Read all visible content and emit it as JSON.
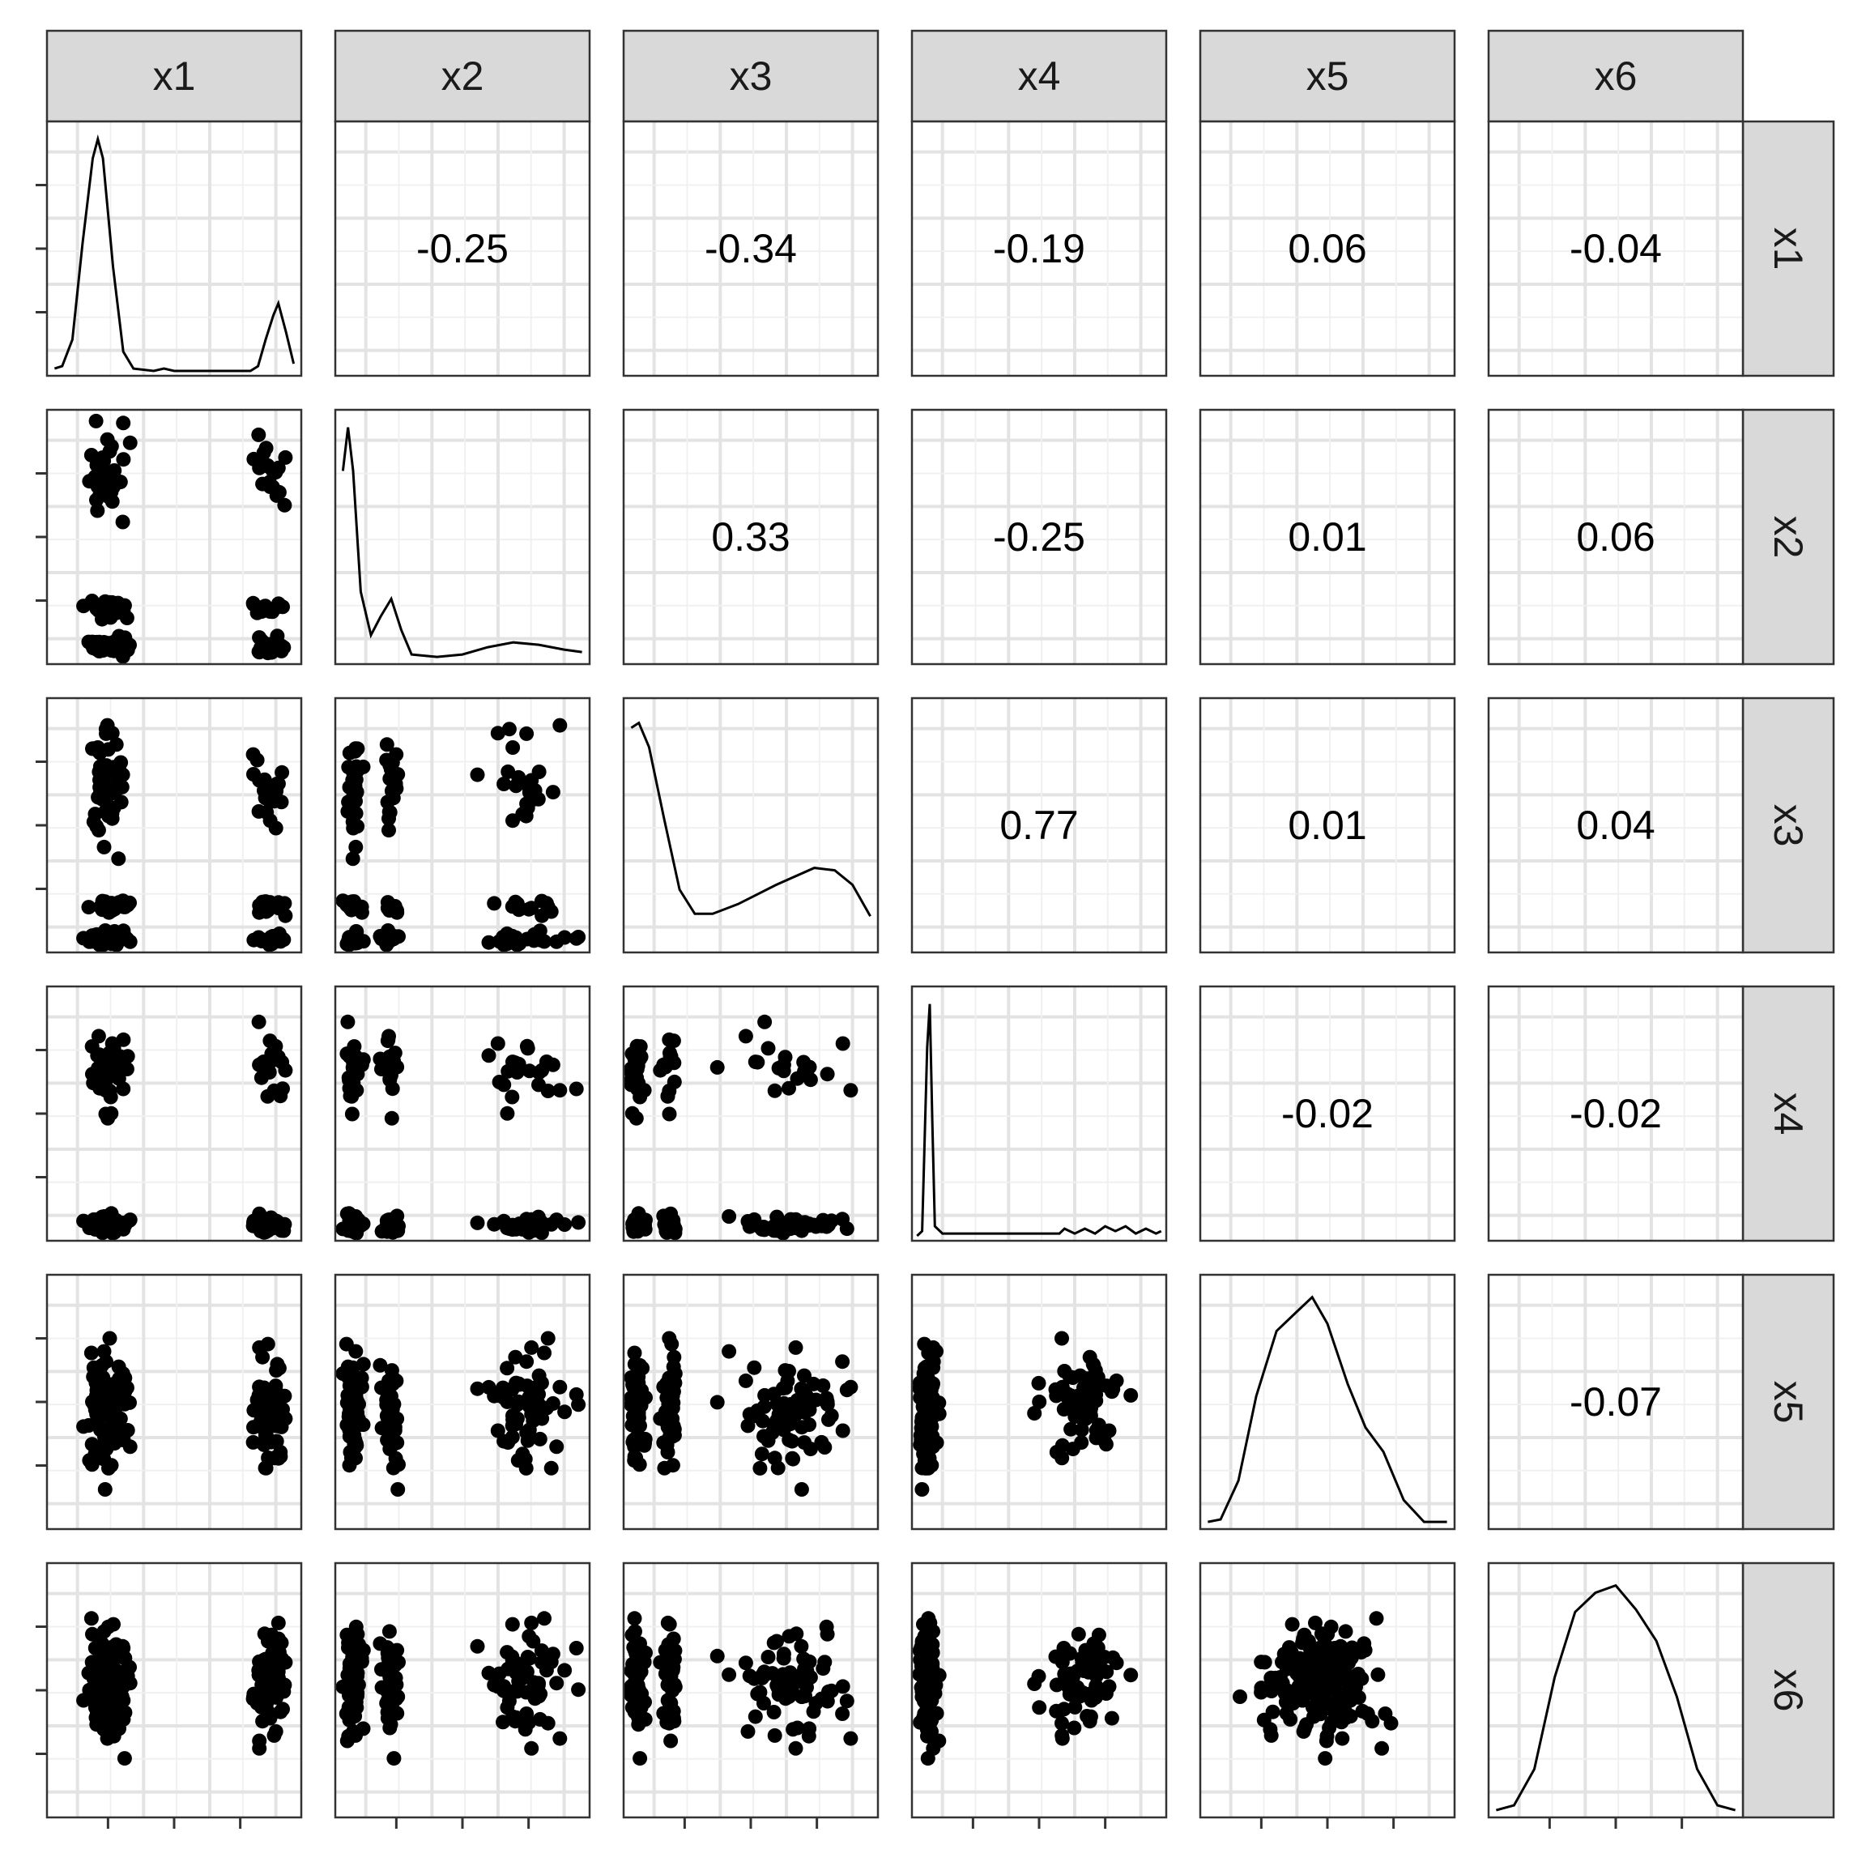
{
  "chart_data": {
    "type": "scatter",
    "variables": [
      "x1",
      "x2",
      "x3",
      "x4",
      "x5",
      "x6"
    ],
    "correlations": [
      {
        "row": "x1",
        "col": "x2",
        "value": "-0.25"
      },
      {
        "row": "x1",
        "col": "x3",
        "value": "-0.34"
      },
      {
        "row": "x1",
        "col": "x4",
        "value": "-0.19"
      },
      {
        "row": "x1",
        "col": "x5",
        "value": "0.06"
      },
      {
        "row": "x1",
        "col": "x6",
        "value": "-0.04"
      },
      {
        "row": "x2",
        "col": "x3",
        "value": "0.33"
      },
      {
        "row": "x2",
        "col": "x4",
        "value": "-0.25"
      },
      {
        "row": "x2",
        "col": "x5",
        "value": "0.01"
      },
      {
        "row": "x2",
        "col": "x6",
        "value": "0.06"
      },
      {
        "row": "x3",
        "col": "x4",
        "value": "0.77"
      },
      {
        "row": "x3",
        "col": "x5",
        "value": "0.01"
      },
      {
        "row": "x3",
        "col": "x6",
        "value": "0.04"
      },
      {
        "row": "x4",
        "col": "x5",
        "value": "-0.02"
      },
      {
        "row": "x4",
        "col": "x6",
        "value": "-0.02"
      },
      {
        "row": "x5",
        "col": "x6",
        "value": "-0.07"
      }
    ],
    "densities": {
      "x1": [
        [
          0.03,
          0.03
        ],
        [
          0.06,
          0.04
        ],
        [
          0.1,
          0.15
        ],
        [
          0.14,
          0.55
        ],
        [
          0.18,
          0.9
        ],
        [
          0.2,
          0.98
        ],
        [
          0.22,
          0.9
        ],
        [
          0.26,
          0.45
        ],
        [
          0.3,
          0.1
        ],
        [
          0.34,
          0.03
        ],
        [
          0.42,
          0.02
        ],
        [
          0.46,
          0.03
        ],
        [
          0.5,
          0.02
        ],
        [
          0.6,
          0.02
        ],
        [
          0.7,
          0.02
        ],
        [
          0.8,
          0.02
        ],
        [
          0.83,
          0.04
        ],
        [
          0.86,
          0.15
        ],
        [
          0.89,
          0.25
        ],
        [
          0.91,
          0.3
        ],
        [
          0.94,
          0.18
        ],
        [
          0.97,
          0.05
        ]
      ],
      "x2": [
        [
          0.03,
          0.8
        ],
        [
          0.05,
          0.98
        ],
        [
          0.07,
          0.8
        ],
        [
          0.1,
          0.3
        ],
        [
          0.14,
          0.12
        ],
        [
          0.18,
          0.2
        ],
        [
          0.22,
          0.27
        ],
        [
          0.26,
          0.14
        ],
        [
          0.3,
          0.04
        ],
        [
          0.4,
          0.03
        ],
        [
          0.5,
          0.04
        ],
        [
          0.6,
          0.07
        ],
        [
          0.7,
          0.09
        ],
        [
          0.8,
          0.08
        ],
        [
          0.9,
          0.06
        ],
        [
          0.97,
          0.05
        ]
      ],
      "x3": [
        [
          0.03,
          0.93
        ],
        [
          0.06,
          0.95
        ],
        [
          0.1,
          0.85
        ],
        [
          0.16,
          0.55
        ],
        [
          0.22,
          0.26
        ],
        [
          0.28,
          0.16
        ],
        [
          0.35,
          0.16
        ],
        [
          0.45,
          0.2
        ],
        [
          0.6,
          0.28
        ],
        [
          0.75,
          0.35
        ],
        [
          0.83,
          0.34
        ],
        [
          0.9,
          0.28
        ],
        [
          0.97,
          0.15
        ]
      ],
      "x4": [
        [
          0.02,
          0.02
        ],
        [
          0.04,
          0.04
        ],
        [
          0.06,
          0.8
        ],
        [
          0.07,
          0.98
        ],
        [
          0.08,
          0.5
        ],
        [
          0.09,
          0.06
        ],
        [
          0.12,
          0.03
        ],
        [
          0.2,
          0.03
        ],
        [
          0.4,
          0.03
        ],
        [
          0.58,
          0.03
        ],
        [
          0.6,
          0.05
        ],
        [
          0.64,
          0.03
        ],
        [
          0.68,
          0.05
        ],
        [
          0.72,
          0.03
        ],
        [
          0.76,
          0.06
        ],
        [
          0.8,
          0.04
        ],
        [
          0.84,
          0.06
        ],
        [
          0.88,
          0.03
        ],
        [
          0.92,
          0.05
        ],
        [
          0.96,
          0.03
        ],
        [
          0.98,
          0.04
        ]
      ],
      "x5": [
        [
          0.03,
          0.03
        ],
        [
          0.08,
          0.04
        ],
        [
          0.15,
          0.2
        ],
        [
          0.22,
          0.55
        ],
        [
          0.3,
          0.82
        ],
        [
          0.38,
          0.9
        ],
        [
          0.44,
          0.96
        ],
        [
          0.5,
          0.85
        ],
        [
          0.58,
          0.6
        ],
        [
          0.65,
          0.42
        ],
        [
          0.72,
          0.32
        ],
        [
          0.8,
          0.12
        ],
        [
          0.88,
          0.03
        ],
        [
          0.97,
          0.03
        ]
      ],
      "x6": [
        [
          0.03,
          0.03
        ],
        [
          0.1,
          0.05
        ],
        [
          0.18,
          0.2
        ],
        [
          0.26,
          0.58
        ],
        [
          0.34,
          0.85
        ],
        [
          0.42,
          0.93
        ],
        [
          0.5,
          0.96
        ],
        [
          0.58,
          0.86
        ],
        [
          0.66,
          0.73
        ],
        [
          0.74,
          0.5
        ],
        [
          0.82,
          0.2
        ],
        [
          0.9,
          0.05
        ],
        [
          0.97,
          0.03
        ]
      ]
    },
    "scatter_clusters": {
      "x1": [
        {
          "c": 0.24,
          "w": 0.08,
          "share": 0.72
        },
        {
          "c": 0.88,
          "w": 0.06,
          "share": 0.28
        }
      ],
      "x2": [
        {
          "c": 0.07,
          "w": 0.03,
          "share": 0.45
        },
        {
          "c": 0.22,
          "w": 0.03,
          "share": 0.25
        },
        {
          "c": 0.74,
          "w": 0.15,
          "share": 0.3
        }
      ],
      "x3": [
        {
          "c": 0.05,
          "w": 0.03,
          "share": 0.35
        },
        {
          "c": 0.18,
          "w": 0.025,
          "share": 0.25
        },
        {
          "c": 0.65,
          "w": 0.22,
          "share": 0.4
        }
      ],
      "x4": [
        {
          "c": 0.06,
          "w": 0.03,
          "share": 0.65
        },
        {
          "c": 0.68,
          "w": 0.15,
          "share": 0.35
        }
      ],
      "x5": [
        {
          "c": 0.47,
          "w": 0.22,
          "share": 1.0
        }
      ],
      "x6": [
        {
          "c": 0.52,
          "w": 0.22,
          "share": 1.0
        }
      ]
    },
    "grid": true,
    "xlabel": "",
    "ylabel": ""
  }
}
